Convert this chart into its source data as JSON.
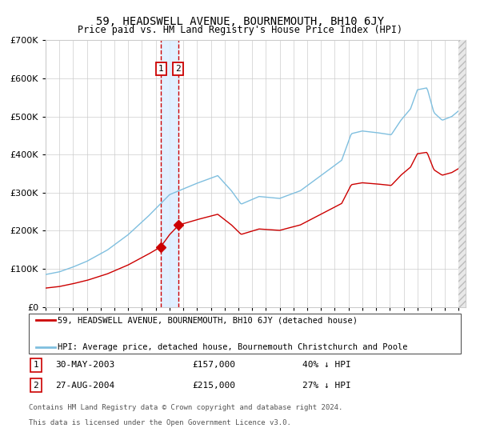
{
  "title": "59, HEADSWELL AVENUE, BOURNEMOUTH, BH10 6JY",
  "subtitle": "Price paid vs. HM Land Registry's House Price Index (HPI)",
  "legend_line1": "59, HEADSWELL AVENUE, BOURNEMOUTH, BH10 6JY (detached house)",
  "legend_line2": "HPI: Average price, detached house, Bournemouth Christchurch and Poole",
  "transaction1_label": "1",
  "transaction1_date": "30-MAY-2003",
  "transaction1_price": 157000,
  "transaction1_price_str": "£157,000",
  "transaction1_hpi_diff": "40% ↓ HPI",
  "transaction1_year": 2003.37,
  "transaction2_label": "2",
  "transaction2_date": "27-AUG-2004",
  "transaction2_price": 215000,
  "transaction2_price_str": "£215,000",
  "transaction2_hpi_diff": "27% ↓ HPI",
  "transaction2_year": 2004.63,
  "hpi_color": "#7fbfdf",
  "price_color": "#cc0000",
  "vline_color": "#cc0000",
  "vspan_color": "#ddeeff",
  "marker_color": "#cc0000",
  "footer_line1": "Contains HM Land Registry data © Crown copyright and database right 2024.",
  "footer_line2": "This data is licensed under the Open Government Licence v3.0.",
  "ylim": [
    0,
    700000
  ],
  "xlim_start": 1995.0,
  "xlim_end": 2025.5,
  "hpi_ctrl_years": [
    1995.0,
    1996.0,
    1997.0,
    1998.0,
    1999.5,
    2001.0,
    2002.5,
    2004.0,
    2005.0,
    2006.0,
    2007.5,
    2008.5,
    2009.2,
    2010.5,
    2012.0,
    2013.5,
    2015.0,
    2016.5,
    2017.2,
    2018.0,
    2019.0,
    2020.1,
    2020.8,
    2021.5,
    2022.0,
    2022.7,
    2023.2,
    2023.8,
    2024.5,
    2025.5
  ],
  "hpi_ctrl_prices": [
    85000,
    92000,
    105000,
    120000,
    150000,
    190000,
    240000,
    295000,
    310000,
    325000,
    345000,
    305000,
    270000,
    290000,
    285000,
    305000,
    345000,
    385000,
    455000,
    462000,
    458000,
    452000,
    490000,
    520000,
    570000,
    575000,
    510000,
    490000,
    500000,
    530000
  ]
}
